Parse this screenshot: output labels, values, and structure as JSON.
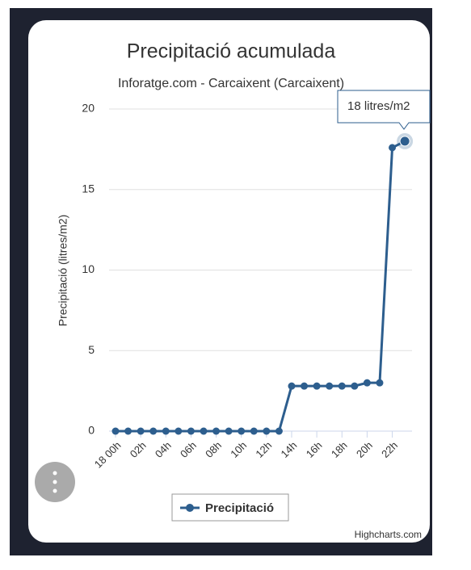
{
  "chart_data": {
    "type": "line",
    "title": "Precipitació acumulada",
    "subtitle": "Inforatge.com - Carcaixent (Carcaixent)",
    "y_label": "Precipitació (litres/m2)",
    "categories": [
      "18 00h",
      null,
      "02h",
      null,
      "04h",
      null,
      "06h",
      null,
      "08h",
      null,
      "10h",
      null,
      "12h",
      null,
      "14h",
      null,
      "16h",
      null,
      "18h",
      null,
      "20h",
      null,
      "22h",
      null
    ],
    "series": [
      {
        "name": "Precipitació",
        "color": "#2d5e8e",
        "values": [
          0,
          0,
          0,
          0,
          0,
          0,
          0,
          0,
          0,
          0,
          0,
          0,
          0,
          0,
          2.8,
          2.8,
          2.8,
          2.8,
          2.8,
          2.8,
          3,
          3,
          17.6,
          18
        ],
        "value_labels": [
          null,
          null,
          null,
          null,
          null,
          null,
          null,
          null,
          null,
          null,
          null,
          null,
          null,
          null,
          null,
          null,
          null,
          null,
          null,
          null,
          null,
          null,
          null,
          "18 litres/m2"
        ]
      }
    ],
    "ylim": [
      0,
      20
    ],
    "yticks": [
      0,
      5,
      10,
      15,
      20
    ],
    "grid": true,
    "credits": "Highcharts.com"
  }
}
